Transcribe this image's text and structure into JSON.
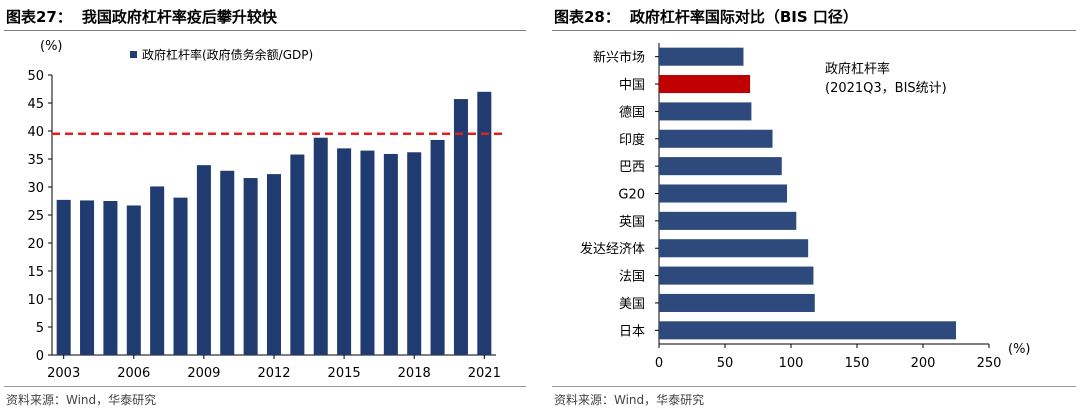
{
  "figures": [
    {
      "number": "图表27：",
      "title": "我国政府杠杆率疫后攀升较快",
      "source": "资料来源：Wind，华泰研究"
    },
    {
      "number": "图表28：",
      "title": "政府杠杆率国际对比（BIS 口径）",
      "source": "资料来源：Wind，华泰研究"
    }
  ],
  "chart_data": [
    {
      "type": "bar",
      "orientation": "vertical",
      "unit_label": "(%)",
      "legend": "政府杠杆率(政府债务余额/GDP)",
      "legend_placement": "top-left",
      "categories": [
        "2003",
        "2004",
        "2005",
        "2006",
        "2007",
        "2008",
        "2009",
        "2010",
        "2011",
        "2012",
        "2013",
        "2014",
        "2015",
        "2016",
        "2017",
        "2018",
        "2019",
        "2020",
        "2021"
      ],
      "x_tick_labels": [
        "2003",
        "2006",
        "2009",
        "2012",
        "2015",
        "2018",
        "2021"
      ],
      "series": [
        {
          "name": "政府杠杆率(政府债务余额/GDP)",
          "values": [
            27.7,
            27.6,
            27.5,
            26.7,
            30.1,
            28.1,
            33.9,
            32.9,
            31.6,
            32.3,
            35.8,
            38.8,
            36.9,
            36.5,
            35.9,
            36.2,
            38.4,
            45.7,
            47.0
          ],
          "color": "#1f3b6f"
        }
      ],
      "reference_line": {
        "value": 39.5,
        "color": "#e02020",
        "style": "dashed"
      },
      "ylim": [
        0,
        50
      ],
      "y_ticks": [
        0,
        5,
        10,
        15,
        20,
        25,
        30,
        35,
        40,
        45,
        50
      ],
      "grid": false
    },
    {
      "type": "bar",
      "orientation": "horizontal",
      "annotation": [
        "政府杠杆率",
        "(2021Q3，BIS统计)"
      ],
      "unit_label": "(%)",
      "categories": [
        "新兴市场",
        "中国",
        "德国",
        "印度",
        "巴西",
        "G20",
        "英国",
        "发达经济体",
        "法国",
        "美国",
        "日本"
      ],
      "values": [
        64,
        69,
        70,
        86,
        93,
        97,
        104,
        113,
        117,
        118,
        225
      ],
      "colors": {
        "default": "#2e4a7d",
        "highlight": "#c00000",
        "highlight_category": "中国"
      },
      "xlim": [
        0,
        250
      ],
      "x_ticks": [
        0,
        50,
        100,
        150,
        200,
        250
      ],
      "grid": false
    }
  ]
}
